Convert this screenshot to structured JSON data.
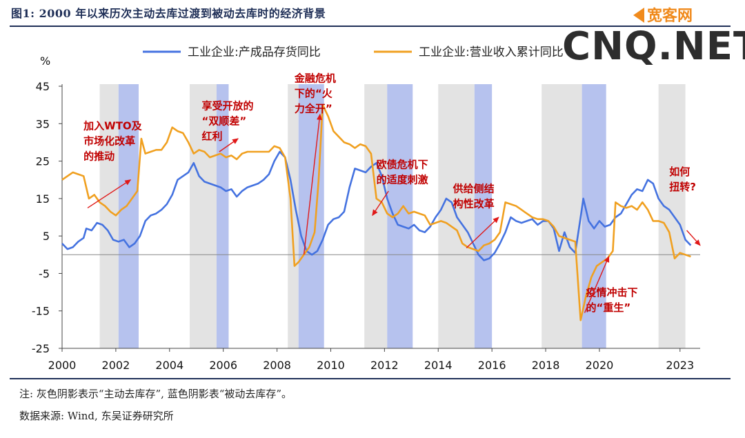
{
  "figure": {
    "title": "图1:  2000 年以来历次主动去库过渡到被动去库时的经济背景",
    "note": "注:  灰色阴影表示“主动去库存”, 蓝色阴影表“被动去库存”。",
    "source": "数据来源:  Wind, 东吴证券研究所",
    "watermark_small": "宽客网",
    "watermark_big": "CNQ.NET"
  },
  "chart_data": {
    "type": "line",
    "ylabel": "%",
    "ylim": [
      -25,
      45
    ],
    "yticks": [
      -25,
      -15,
      -5,
      5,
      15,
      25,
      35,
      45
    ],
    "xlim": [
      2000,
      2023.75
    ],
    "xticks": [
      {
        "value": 2000,
        "label": "2000"
      },
      {
        "value": 2002,
        "label": "2002"
      },
      {
        "value": 2004,
        "label": "2004"
      },
      {
        "value": 2006,
        "label": "2006"
      },
      {
        "value": 2008,
        "label": "2008"
      },
      {
        "value": 2010,
        "label": "2010"
      },
      {
        "value": 2012,
        "label": "2012"
      },
      {
        "value": 2014,
        "label": "2014"
      },
      {
        "value": 2016,
        "label": "2016"
      },
      {
        "value": 2018,
        "label": "2018"
      },
      {
        "value": 2020,
        "label": "2020"
      },
      {
        "value": 2023,
        "label": "2023"
      }
    ],
    "grid": false,
    "legend_position": "top",
    "shading": [
      {
        "kind": "active",
        "color": "#e3e3e3",
        "start": 2001.4,
        "end": 2002.1
      },
      {
        "kind": "passive",
        "color": "#b6c2ee",
        "start": 2002.1,
        "end": 2002.85
      },
      {
        "kind": "active",
        "color": "#e3e3e3",
        "start": 2004.75,
        "end": 2005.75
      },
      {
        "kind": "passive",
        "color": "#b6c2ee",
        "start": 2005.75,
        "end": 2006.2
      },
      {
        "kind": "active",
        "color": "#e3e3e3",
        "start": 2008.4,
        "end": 2008.8
      },
      {
        "kind": "passive",
        "color": "#b6c2ee",
        "start": 2008.8,
        "end": 2009.75
      },
      {
        "kind": "active",
        "color": "#e3e3e3",
        "start": 2011.25,
        "end": 2012.1
      },
      {
        "kind": "passive",
        "color": "#b6c2ee",
        "start": 2012.1,
        "end": 2013.05
      },
      {
        "kind": "active",
        "color": "#e3e3e3",
        "start": 2014.0,
        "end": 2015.35
      },
      {
        "kind": "passive",
        "color": "#b6c2ee",
        "start": 2015.35,
        "end": 2016.0
      },
      {
        "kind": "active",
        "color": "#e3e3e3",
        "start": 2017.85,
        "end": 2019.35
      },
      {
        "kind": "passive",
        "color": "#b6c2ee",
        "start": 2019.35,
        "end": 2020.25
      },
      {
        "kind": "active",
        "color": "#e3e3e3",
        "start": 2022.2,
        "end": 2023.2
      }
    ],
    "series": [
      {
        "name": "工业企业:产成品存货同比",
        "color": "#4472e0",
        "points": [
          [
            2000.0,
            3
          ],
          [
            2000.2,
            1.5
          ],
          [
            2000.4,
            2
          ],
          [
            2000.6,
            3.5
          ],
          [
            2000.8,
            4.5
          ],
          [
            2000.9,
            7
          ],
          [
            2001.1,
            6.5
          ],
          [
            2001.3,
            8.5
          ],
          [
            2001.5,
            8
          ],
          [
            2001.7,
            6.5
          ],
          [
            2001.9,
            4
          ],
          [
            2002.1,
            3.5
          ],
          [
            2002.3,
            4
          ],
          [
            2002.5,
            2
          ],
          [
            2002.7,
            3
          ],
          [
            2002.9,
            5
          ],
          [
            2003.1,
            9
          ],
          [
            2003.3,
            10.5
          ],
          [
            2003.5,
            11
          ],
          [
            2003.7,
            12
          ],
          [
            2003.9,
            13.5
          ],
          [
            2004.1,
            16
          ],
          [
            2004.3,
            20
          ],
          [
            2004.5,
            21
          ],
          [
            2004.7,
            22
          ],
          [
            2004.9,
            24.5
          ],
          [
            2005.1,
            21
          ],
          [
            2005.3,
            19.5
          ],
          [
            2005.5,
            19
          ],
          [
            2005.7,
            18.5
          ],
          [
            2005.9,
            18
          ],
          [
            2006.1,
            17
          ],
          [
            2006.3,
            17.5
          ],
          [
            2006.5,
            15.5
          ],
          [
            2006.7,
            17
          ],
          [
            2006.9,
            18
          ],
          [
            2007.1,
            18.5
          ],
          [
            2007.3,
            19
          ],
          [
            2007.5,
            20
          ],
          [
            2007.7,
            21.5
          ],
          [
            2007.9,
            25
          ],
          [
            2008.1,
            27.5
          ],
          [
            2008.3,
            26
          ],
          [
            2008.5,
            20
          ],
          [
            2008.7,
            12
          ],
          [
            2008.9,
            5
          ],
          [
            2009.1,
            1
          ],
          [
            2009.3,
            0
          ],
          [
            2009.5,
            1
          ],
          [
            2009.7,
            4
          ],
          [
            2009.9,
            8
          ],
          [
            2010.1,
            9.5
          ],
          [
            2010.3,
            10
          ],
          [
            2010.5,
            11.5
          ],
          [
            2010.7,
            18
          ],
          [
            2010.9,
            23
          ],
          [
            2011.1,
            22.5
          ],
          [
            2011.3,
            22
          ],
          [
            2011.5,
            23.5
          ],
          [
            2011.7,
            24.5
          ],
          [
            2011.9,
            21
          ],
          [
            2012.1,
            15
          ],
          [
            2012.3,
            11
          ],
          [
            2012.5,
            8
          ],
          [
            2012.7,
            7.5
          ],
          [
            2012.9,
            7
          ],
          [
            2013.1,
            8
          ],
          [
            2013.3,
            6.5
          ],
          [
            2013.5,
            6
          ],
          [
            2013.7,
            7.5
          ],
          [
            2013.9,
            10
          ],
          [
            2014.1,
            12
          ],
          [
            2014.3,
            15
          ],
          [
            2014.5,
            14
          ],
          [
            2014.7,
            10
          ],
          [
            2014.9,
            8
          ],
          [
            2015.1,
            6
          ],
          [
            2015.3,
            3
          ],
          [
            2015.5,
            0
          ],
          [
            2015.7,
            -1.5
          ],
          [
            2015.9,
            -1
          ],
          [
            2016.1,
            0.5
          ],
          [
            2016.3,
            3
          ],
          [
            2016.5,
            6
          ],
          [
            2016.7,
            10
          ],
          [
            2016.9,
            9
          ],
          [
            2017.1,
            8.5
          ],
          [
            2017.3,
            9
          ],
          [
            2017.5,
            9.5
          ],
          [
            2017.7,
            8
          ],
          [
            2017.9,
            9
          ],
          [
            2018.1,
            9
          ],
          [
            2018.3,
            7
          ],
          [
            2018.5,
            1
          ],
          [
            2018.7,
            6
          ],
          [
            2018.9,
            2
          ],
          [
            2019.1,
            0.5
          ],
          [
            2019.3,
            10
          ],
          [
            2019.4,
            15
          ],
          [
            2019.6,
            9
          ],
          [
            2019.8,
            7
          ],
          [
            2020.0,
            9
          ],
          [
            2020.2,
            7.5
          ],
          [
            2020.4,
            8
          ],
          [
            2020.6,
            10
          ],
          [
            2020.8,
            11
          ],
          [
            2021.0,
            13.5
          ],
          [
            2021.2,
            16
          ],
          [
            2021.4,
            17.5
          ],
          [
            2021.6,
            17
          ],
          [
            2021.8,
            20
          ],
          [
            2022.0,
            19
          ],
          [
            2022.2,
            15
          ],
          [
            2022.4,
            13
          ],
          [
            2022.6,
            12
          ],
          [
            2022.8,
            10
          ],
          [
            2023.0,
            8
          ],
          [
            2023.2,
            4
          ],
          [
            2023.4,
            2.5
          ]
        ]
      },
      {
        "name": "工业企业:营业收入累计同比",
        "color": "#f0a020",
        "points": [
          [
            2000.0,
            20
          ],
          [
            2000.2,
            21
          ],
          [
            2000.4,
            22
          ],
          [
            2000.6,
            21.5
          ],
          [
            2000.8,
            21
          ],
          [
            2001.0,
            15
          ],
          [
            2001.2,
            16
          ],
          [
            2001.4,
            14
          ],
          [
            2001.6,
            13
          ],
          [
            2001.8,
            11.5
          ],
          [
            2002.0,
            10.5
          ],
          [
            2002.2,
            12
          ],
          [
            2002.4,
            13
          ],
          [
            2002.6,
            15
          ],
          [
            2002.8,
            17
          ],
          [
            2002.95,
            31
          ],
          [
            2003.1,
            27
          ],
          [
            2003.3,
            27.5
          ],
          [
            2003.5,
            28
          ],
          [
            2003.7,
            28
          ],
          [
            2003.9,
            30
          ],
          [
            2004.1,
            34
          ],
          [
            2004.3,
            33
          ],
          [
            2004.5,
            32.5
          ],
          [
            2004.7,
            30
          ],
          [
            2004.9,
            27
          ],
          [
            2005.1,
            28
          ],
          [
            2005.3,
            27.5
          ],
          [
            2005.5,
            26
          ],
          [
            2005.7,
            26.5
          ],
          [
            2005.9,
            27
          ],
          [
            2006.1,
            26
          ],
          [
            2006.3,
            26.5
          ],
          [
            2006.5,
            25.5
          ],
          [
            2006.7,
            27
          ],
          [
            2006.9,
            27.5
          ],
          [
            2007.1,
            27.5
          ],
          [
            2007.3,
            27.5
          ],
          [
            2007.5,
            27.5
          ],
          [
            2007.7,
            27.5
          ],
          [
            2007.9,
            29
          ],
          [
            2008.1,
            28.5
          ],
          [
            2008.3,
            26
          ],
          [
            2008.5,
            15
          ],
          [
            2008.65,
            -3
          ],
          [
            2008.8,
            -2
          ],
          [
            2009.0,
            0
          ],
          [
            2009.2,
            2
          ],
          [
            2009.4,
            6
          ],
          [
            2009.55,
            20
          ],
          [
            2009.7,
            40
          ],
          [
            2009.9,
            37
          ],
          [
            2010.1,
            33
          ],
          [
            2010.3,
            31.5
          ],
          [
            2010.5,
            30
          ],
          [
            2010.7,
            29.5
          ],
          [
            2010.9,
            28.5
          ],
          [
            2011.1,
            29.5
          ],
          [
            2011.3,
            29
          ],
          [
            2011.5,
            27
          ],
          [
            2011.7,
            15
          ],
          [
            2011.9,
            14
          ],
          [
            2012.1,
            11
          ],
          [
            2012.3,
            10
          ],
          [
            2012.5,
            11
          ],
          [
            2012.7,
            13
          ],
          [
            2012.9,
            11
          ],
          [
            2013.1,
            11.5
          ],
          [
            2013.3,
            11
          ],
          [
            2013.5,
            10.5
          ],
          [
            2013.7,
            8
          ],
          [
            2013.9,
            8.5
          ],
          [
            2014.1,
            9
          ],
          [
            2014.3,
            8.5
          ],
          [
            2014.5,
            7.5
          ],
          [
            2014.7,
            6.5
          ],
          [
            2014.9,
            3
          ],
          [
            2015.1,
            2
          ],
          [
            2015.3,
            1.5
          ],
          [
            2015.5,
            1
          ],
          [
            2015.7,
            2.5
          ],
          [
            2015.9,
            3
          ],
          [
            2016.1,
            4
          ],
          [
            2016.3,
            6
          ],
          [
            2016.5,
            14
          ],
          [
            2016.7,
            13.5
          ],
          [
            2016.9,
            13
          ],
          [
            2017.1,
            12
          ],
          [
            2017.3,
            11
          ],
          [
            2017.5,
            10
          ],
          [
            2017.7,
            9.5
          ],
          [
            2017.9,
            9.5
          ],
          [
            2018.1,
            9
          ],
          [
            2018.3,
            7.5
          ],
          [
            2018.5,
            5
          ],
          [
            2018.7,
            4.5
          ],
          [
            2018.9,
            4
          ],
          [
            2019.1,
            3.5
          ],
          [
            2019.3,
            -17.5
          ],
          [
            2019.5,
            -11
          ],
          [
            2019.7,
            -6
          ],
          [
            2019.9,
            -3
          ],
          [
            2020.1,
            -2
          ],
          [
            2020.3,
            -1
          ],
          [
            2020.5,
            1
          ],
          [
            2020.6,
            14
          ],
          [
            2020.8,
            13
          ],
          [
            2021.0,
            12.5
          ],
          [
            2021.2,
            13
          ],
          [
            2021.4,
            12
          ],
          [
            2021.6,
            14
          ],
          [
            2021.8,
            12
          ],
          [
            2022.0,
            9
          ],
          [
            2022.2,
            9
          ],
          [
            2022.4,
            8.5
          ],
          [
            2022.6,
            6
          ],
          [
            2022.8,
            -1
          ],
          [
            2023.0,
            0.5
          ],
          [
            2023.2,
            0
          ],
          [
            2023.4,
            -0.5
          ]
        ]
      }
    ],
    "annotations": [
      {
        "lines": [
          "加入WTO及",
          "市场化改革",
          "的推动"
        ],
        "text_at": [
          2000.8,
          33.5
        ],
        "arrow_from": [
          2000.95,
          12.5
        ],
        "arrow_to": [
          2002.55,
          20
        ]
      },
      {
        "lines": [
          "享受开放的",
          "“双顺差”",
          "红利"
        ],
        "text_at": [
          2005.2,
          38.8
        ],
        "arrow_from": [
          2005.85,
          27.5
        ],
        "arrow_to": [
          2006.55,
          31
        ]
      },
      {
        "lines": [
          "金融危机",
          "下的“火",
          "力全开”"
        ],
        "text_at": [
          2008.65,
          46.2
        ],
        "arrow_from": [
          2009.0,
          0
        ],
        "arrow_to": [
          2009.6,
          37.5
        ]
      },
      {
        "lines": [
          "欧债危机下",
          "的适度刺激"
        ],
        "text_at": [
          2011.7,
          23.2
        ],
        "arrow_from": [
          2012.15,
          17
        ],
        "arrow_to": [
          2011.55,
          10.5
        ]
      },
      {
        "lines": [
          "供给侧结",
          "构性改革"
        ],
        "text_at": [
          2014.55,
          16.7
        ],
        "arrow_from": [
          2015.05,
          1.8
        ],
        "arrow_to": [
          2016.25,
          10
        ]
      },
      {
        "lines": [
          "疫情冲击下",
          "的“重生”"
        ],
        "text_at": [
          2019.5,
          -11
        ],
        "arrow_from": [
          2019.45,
          -15.5
        ],
        "arrow_to": [
          2020.35,
          -0.5
        ]
      },
      {
        "lines": [
          "如何",
          "扭转?"
        ],
        "text_at": [
          2022.6,
          21.2
        ],
        "arrow_from": [
          2023.25,
          6.5
        ],
        "arrow_to": [
          2023.75,
          2.5
        ]
      }
    ]
  }
}
